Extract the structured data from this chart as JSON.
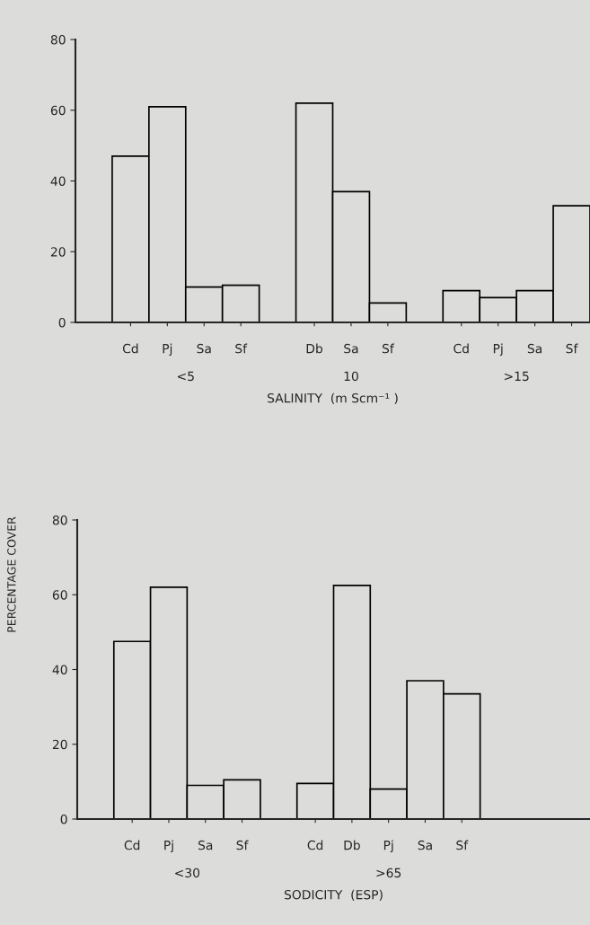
{
  "chart_data": [
    {
      "type": "bar",
      "categories": [
        null,
        "Cd",
        "Pj",
        "Sa",
        "Sf",
        null,
        "Db",
        "Sa",
        "Sf",
        null,
        "Cd",
        "Pj",
        "Sa",
        "Sf"
      ],
      "values": [
        null,
        47,
        61,
        10,
        10.5,
        null,
        62,
        37,
        5.5,
        null,
        9,
        7,
        9,
        33
      ],
      "color": "#dcdddb",
      "ylim": [
        0,
        80
      ],
      "yticks": [
        0,
        20,
        40,
        60,
        80
      ],
      "xlabel": "SALINITY  (m Scm⁻¹ )",
      "annotations": [
        "<5",
        "10",
        ">15"
      ]
    },
    {
      "type": "bar",
      "categories": [
        null,
        "Cd",
        "Pj",
        "Sa",
        "Sf",
        null,
        "Cd",
        "Db",
        "Pj",
        "Sa",
        "Sf",
        null,
        null,
        null
      ],
      "values": [
        null,
        47.5,
        62,
        9,
        10.5,
        null,
        9.5,
        62.5,
        8,
        37,
        33.5,
        null,
        null,
        null
      ],
      "color": "#dcdddb",
      "ylim": [
        0,
        80
      ],
      "yticks": [
        0,
        20,
        40,
        60,
        80
      ],
      "xlabel": "SODICITY  (ESP)",
      "ylabel": "PERCENTAGE COVER",
      "annotations": [
        "<30",
        ">65"
      ]
    }
  ]
}
